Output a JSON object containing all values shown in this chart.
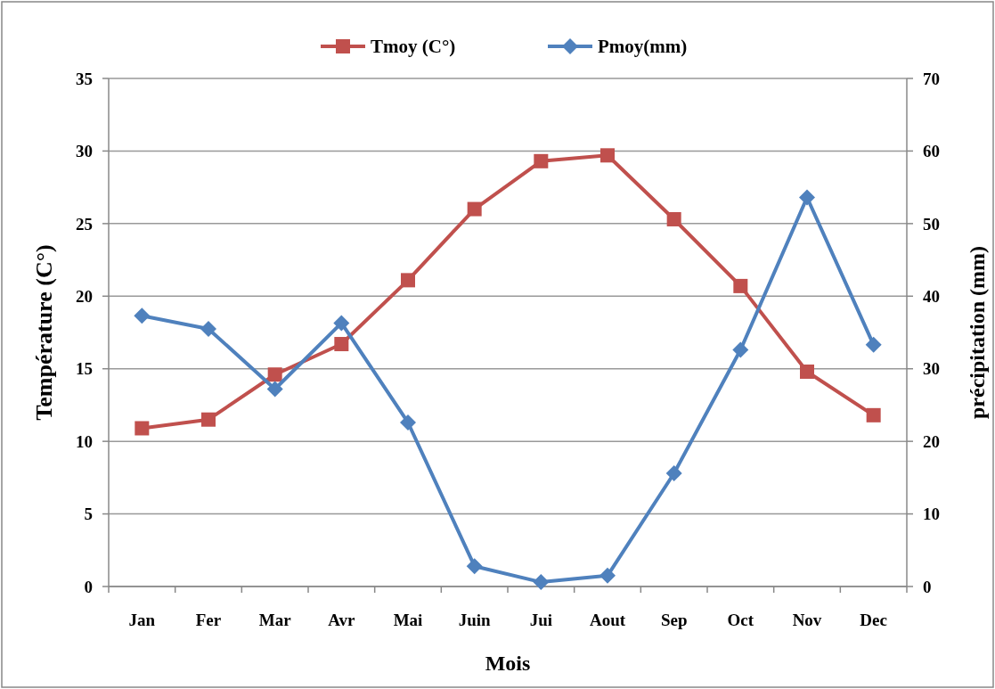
{
  "chart_data": {
    "type": "line",
    "xlabel": "Mois",
    "ylabel": "Température (C°)",
    "y2label": "précipitation (mm)",
    "categories": [
      "Jan",
      "Fer",
      "Mar",
      "Avr",
      "Mai",
      "Juin",
      "Jui",
      "Aout",
      "Sep",
      "Oct",
      "Nov",
      "Dec"
    ],
    "series": [
      {
        "name": "Tmoy (C°)",
        "color": "#c0504d",
        "marker": "square",
        "values": [
          10.9,
          11.5,
          14.6,
          16.7,
          21.1,
          26.0,
          29.3,
          29.7,
          25.3,
          20.7,
          14.8,
          11.8
        ]
      },
      {
        "name": "Pmoy(mm)",
        "color": "#4f81bd",
        "marker": "diamond",
        "axis": "y2",
        "values": [
          37.3,
          35.5,
          27.2,
          36.3,
          22.6,
          2.8,
          0.6,
          1.5,
          15.6,
          32.6,
          53.6,
          33.3
        ]
      }
    ],
    "ylim": [
      0,
      35
    ],
    "yticks": [
      0,
      5,
      10,
      15,
      20,
      25,
      30,
      35
    ],
    "y2lim": [
      0,
      70
    ],
    "y2ticks": [
      0,
      10,
      20,
      30,
      40,
      50,
      60,
      70
    ],
    "grid": "y",
    "legend": "top"
  }
}
